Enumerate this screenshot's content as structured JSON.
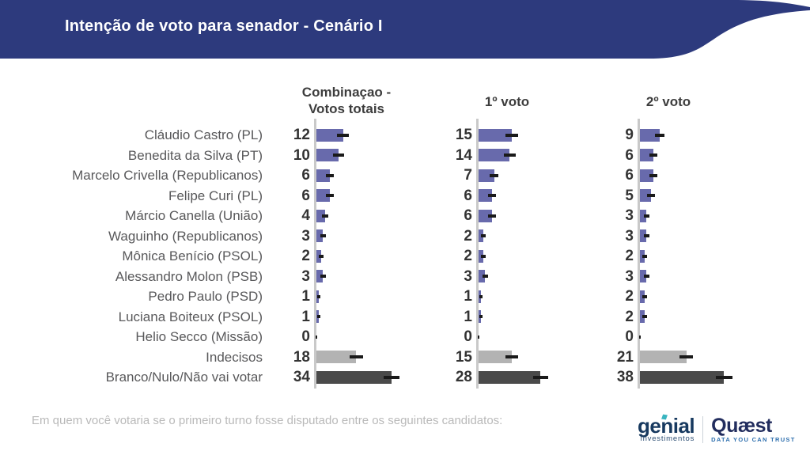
{
  "header": {
    "title": "Intenção de voto para senador - Cenário I"
  },
  "columns": [
    "Combinaçao -\nVotos totais",
    "1º voto",
    "2º voto"
  ],
  "chart_data": {
    "type": "bar",
    "orientation": "horizontal",
    "title": "Intenção de voto para senador - Cenário I",
    "xlabel": "",
    "ylabel": "",
    "xlim": [
      0,
      40
    ],
    "grid": false,
    "value_labels": "left of axis",
    "error_bars": true,
    "categories": [
      "Cláudio Castro (PL)",
      "Benedita da Silva (PT)",
      "Marcelo Crivella (Republicanos)",
      "Felipe Curi (PL)",
      "Márcio Canella (União)",
      "Waguinho (Republicanos)",
      "Mônica Benício (PSOL)",
      "Alessandro Molon (PSB)",
      "Pedro Paulo (PSD)",
      "Luciana Boiteux (PSOL)",
      "Helio Secco (Missão)",
      "Indecisos",
      "Branco/Nulo/Não vai votar"
    ],
    "series": [
      {
        "name": "Combinaçao - Votos totais",
        "values": [
          12,
          10,
          6,
          6,
          4,
          3,
          2,
          3,
          1,
          1,
          0,
          18,
          34
        ],
        "err": [
          2.7,
          2.5,
          1.8,
          1.8,
          1.5,
          1.3,
          1.1,
          1.3,
          0.8,
          0.8,
          0.4,
          2.9,
          3.6
        ]
      },
      {
        "name": "1º voto",
        "values": [
          15,
          14,
          7,
          6,
          6,
          2,
          2,
          3,
          1,
          1,
          0,
          15,
          28
        ],
        "err": [
          2.8,
          2.7,
          1.9,
          1.8,
          1.8,
          1.1,
          1.1,
          1.3,
          0.8,
          0.8,
          0.4,
          2.7,
          3.3
        ]
      },
      {
        "name": "2º voto",
        "values": [
          9,
          6,
          6,
          5,
          3,
          3,
          2,
          3,
          2,
          2,
          0,
          21,
          38
        ],
        "err": [
          2.2,
          1.8,
          1.8,
          1.7,
          1.3,
          1.3,
          1.1,
          1.3,
          1.1,
          1.1,
          0.4,
          3.0,
          3.8
        ]
      }
    ]
  },
  "colors": {
    "banner": "#2d3a7d",
    "bar": "#686aac",
    "undecided": "#b3b3b3",
    "blank": "#4a4a4a",
    "axis": "#c9c9c9"
  },
  "footer": {
    "question": "Em quem você votaria se o primeiro turno fosse disputado entre os seguintes candidatos:",
    "genial": {
      "name": "genial",
      "sub": "investimentos"
    },
    "quaest": {
      "name": "Quæst",
      "tagline": "DATA YOU CAN TRUST"
    }
  }
}
